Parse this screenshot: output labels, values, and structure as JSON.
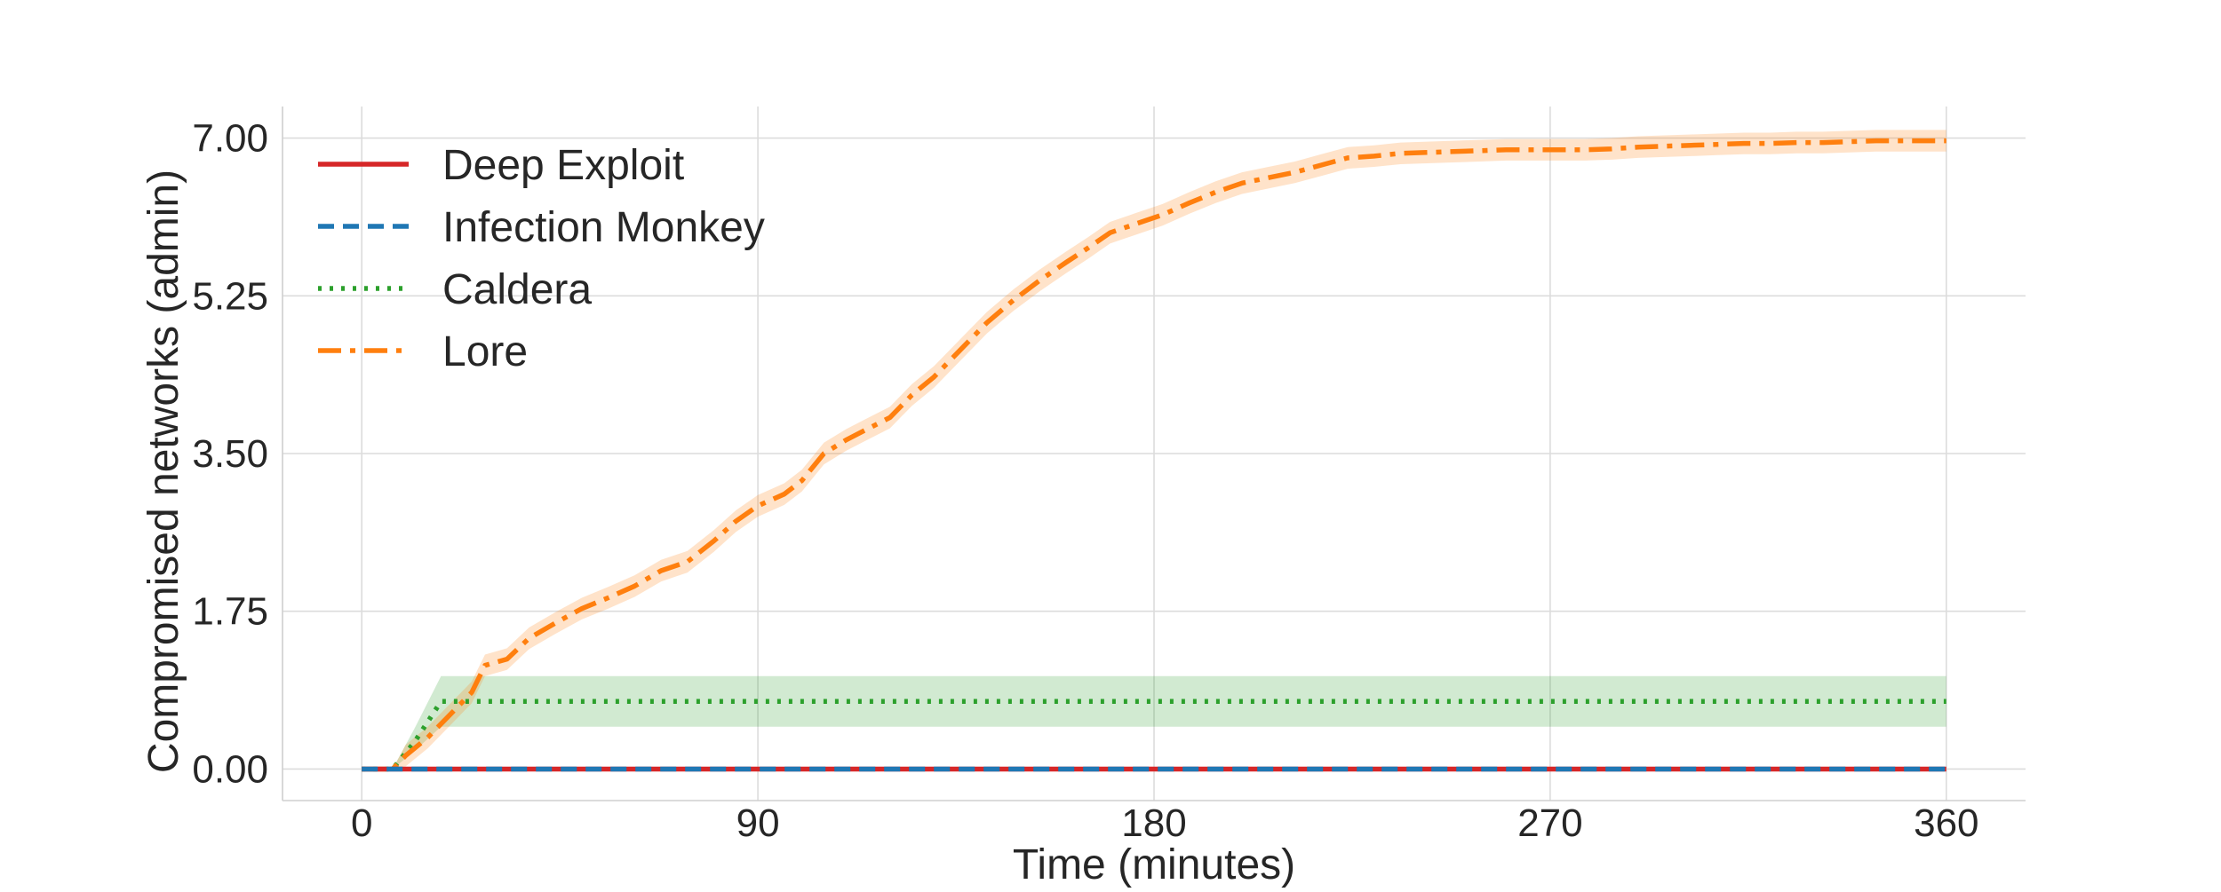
{
  "chart_data": {
    "type": "line",
    "title": "",
    "xlabel": "Time (minutes)",
    "ylabel": "Compromised networks (admin)",
    "xlim": [
      -18,
      378
    ],
    "ylim": [
      -0.35,
      7.35
    ],
    "xticks": [
      0,
      90,
      180,
      270,
      360
    ],
    "xtick_labels": [
      "0",
      "90",
      "180",
      "270",
      "360"
    ],
    "yticks": [
      0,
      1.75,
      3.5,
      5.25,
      7.0
    ],
    "ytick_labels": [
      "0.00",
      "1.75",
      "3.50",
      "5.25",
      "7.00"
    ],
    "grid": true,
    "legend_position": "top-left",
    "series": [
      {
        "name": "Deep Exploit",
        "color": "#d62728",
        "style": "solid",
        "x": [
          0,
          360
        ],
        "y": [
          0,
          0
        ]
      },
      {
        "name": "Infection Monkey",
        "color": "#1f77b4",
        "style": "dashed",
        "x": [
          0,
          360
        ],
        "y": [
          0,
          0
        ]
      },
      {
        "name": "Caldera",
        "color": "#2ca02c",
        "style": "dotted",
        "x": [
          0,
          7,
          12,
          18,
          20,
          360
        ],
        "y": [
          0,
          0,
          0.3,
          0.75,
          0.75,
          0.75
        ],
        "band_lower": [
          0,
          0,
          0.2,
          0.47,
          0.47,
          0.47
        ],
        "band_upper": [
          0,
          0,
          0.45,
          1.03,
          1.03,
          1.03
        ]
      },
      {
        "name": "Lore",
        "color": "#ff7f0e",
        "style": "dashdot",
        "x": [
          0,
          7,
          10,
          15,
          20,
          25,
          28,
          33,
          38,
          44,
          50,
          56,
          62,
          68,
          74,
          80,
          85,
          90,
          96,
          100,
          105,
          110,
          114,
          120,
          125,
          130,
          136,
          142,
          148,
          154,
          160,
          165,
          170,
          176,
          182,
          188,
          194,
          200,
          206,
          212,
          218,
          224,
          230,
          236,
          242,
          248,
          254,
          260,
          266,
          272,
          278,
          284,
          290,
          296,
          302,
          308,
          314,
          320,
          326,
          332,
          338,
          344,
          350,
          356,
          360
        ],
        "y": [
          0,
          0,
          0.15,
          0.35,
          0.6,
          0.85,
          1.15,
          1.22,
          1.45,
          1.62,
          1.78,
          1.9,
          2.03,
          2.2,
          2.3,
          2.53,
          2.75,
          2.92,
          3.05,
          3.2,
          3.5,
          3.65,
          3.75,
          3.9,
          4.15,
          4.35,
          4.65,
          4.95,
          5.2,
          5.42,
          5.62,
          5.78,
          5.95,
          6.05,
          6.15,
          6.28,
          6.4,
          6.5,
          6.56,
          6.62,
          6.7,
          6.78,
          6.8,
          6.83,
          6.84,
          6.85,
          6.86,
          6.87,
          6.87,
          6.87,
          6.87,
          6.88,
          6.9,
          6.91,
          6.92,
          6.93,
          6.94,
          6.94,
          6.95,
          6.95,
          6.96,
          6.97,
          6.97,
          6.97,
          6.97
        ],
        "band_halfwidth": 0.12
      }
    ]
  }
}
